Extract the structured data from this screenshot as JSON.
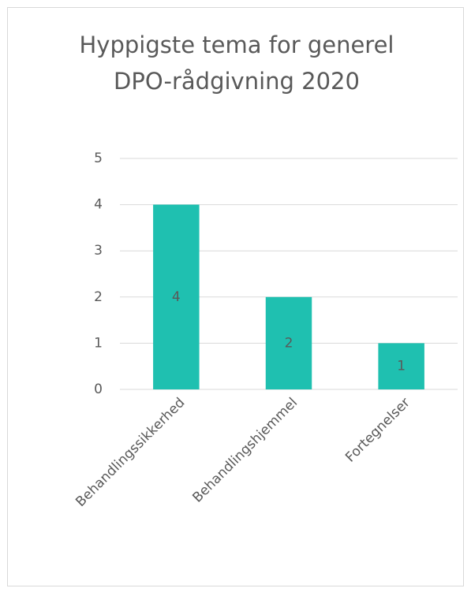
{
  "chart_data": {
    "type": "bar",
    "title": "Hyppigste tema for generel DPO-rådgivning 2020",
    "categories": [
      "Behandlingssikkerhed",
      "Behandlingshjemmel",
      "Fortegnelser"
    ],
    "values": [
      4,
      2,
      1
    ],
    "color": "#1fc0b0",
    "ylim": [
      0,
      5
    ],
    "yticks": [
      0,
      1,
      2,
      3,
      4,
      5
    ],
    "grid": true
  }
}
